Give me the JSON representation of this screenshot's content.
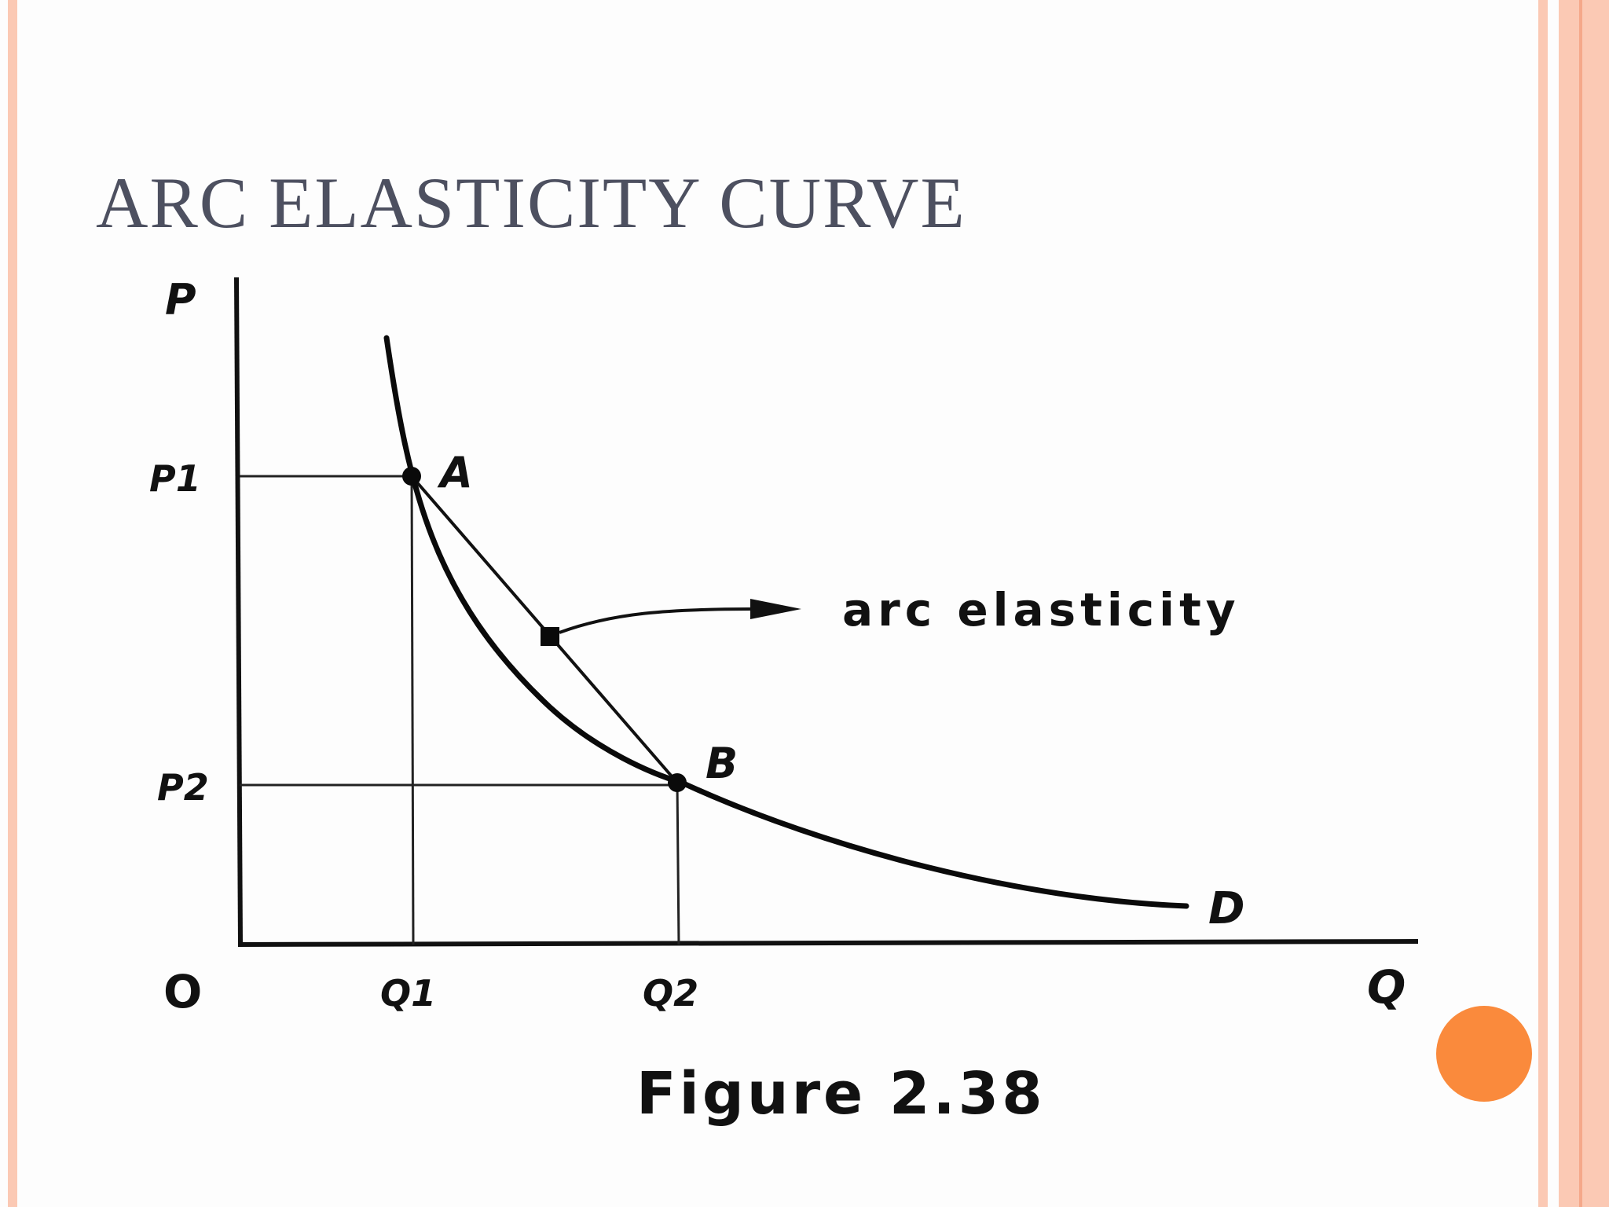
{
  "slide": {
    "title": "ARC ELASTICITY CURVE",
    "colors": {
      "background": "#fdfdfd",
      "border_light": "#fbc9b4",
      "border_dark": "#f5a88a",
      "accent": "#fa8a3c",
      "title": "#4d5060",
      "ink": "#111111"
    }
  },
  "figure": {
    "axis_labels": {
      "price": "P",
      "quantity": "Q",
      "origin": "O"
    },
    "price_ticks": {
      "p1": "P1",
      "p2": "P2"
    },
    "quantity_ticks": {
      "q1": "Q1",
      "q2": "Q2"
    },
    "points": {
      "a": "A",
      "b": "B"
    },
    "curve_label": "D",
    "annotation": "arc elasticity",
    "caption": "Figure 2.38"
  }
}
